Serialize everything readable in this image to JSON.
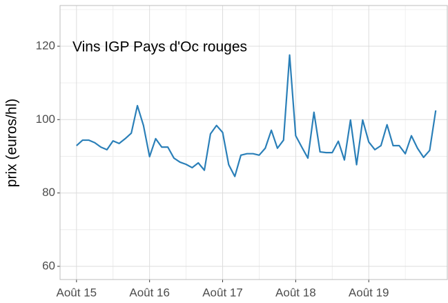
{
  "chart_data": {
    "type": "line",
    "annotation": "Vins IGP Pays d'Oc rouges",
    "y_label": "prix (euros/hl)",
    "x": [
      0,
      1,
      2,
      3,
      4,
      5,
      6,
      7,
      8,
      9,
      10,
      11,
      12,
      13,
      14,
      15,
      16,
      17,
      18,
      19,
      20,
      21,
      22,
      23,
      24,
      25,
      26,
      27,
      28,
      29,
      30,
      31,
      32,
      33,
      34,
      35,
      36,
      37,
      38,
      39,
      40,
      41,
      42,
      43,
      44,
      45,
      46,
      47,
      48,
      49,
      50,
      51,
      52,
      53,
      54,
      55,
      56,
      57,
      58,
      59
    ],
    "series": [
      {
        "name": "prix",
        "color": "#2a7fb8",
        "values": [
          92.9,
          94.4,
          94.4,
          93.7,
          92.5,
          91.8,
          94.2,
          93.5,
          94.8,
          96.3,
          103.8,
          98.4,
          89.9,
          94.8,
          92.5,
          92.5,
          89.5,
          88.4,
          87.8,
          86.9,
          88.2,
          86.2,
          96.1,
          98.4,
          96.5,
          87.7,
          84.5,
          90.3,
          90.7,
          90.7,
          90.3,
          92.2,
          97.1,
          92.2,
          94.4,
          117.6,
          95.6,
          92.5,
          89.5,
          102.0,
          91.2,
          91.0,
          91.0,
          94.1,
          89.0,
          99.9,
          87.7,
          99.9,
          93.9,
          91.8,
          92.9,
          98.6,
          92.9,
          92.9,
          90.7,
          95.6,
          92.2,
          89.7,
          91.6,
          102.5
        ]
      }
    ],
    "xlim": [
      -2.7,
      60.9
    ],
    "xticks": [
      {
        "value": 0,
        "label": "Août 15"
      },
      {
        "value": 12,
        "label": "Août 16"
      },
      {
        "value": 24,
        "label": "Août 17"
      },
      {
        "value": 36,
        "label": "Août 18"
      },
      {
        "value": 48,
        "label": "Août 19"
      }
    ],
    "ylim": [
      56.4,
      131.1
    ],
    "yticks": [
      60,
      80,
      100,
      120
    ],
    "grid": true
  }
}
